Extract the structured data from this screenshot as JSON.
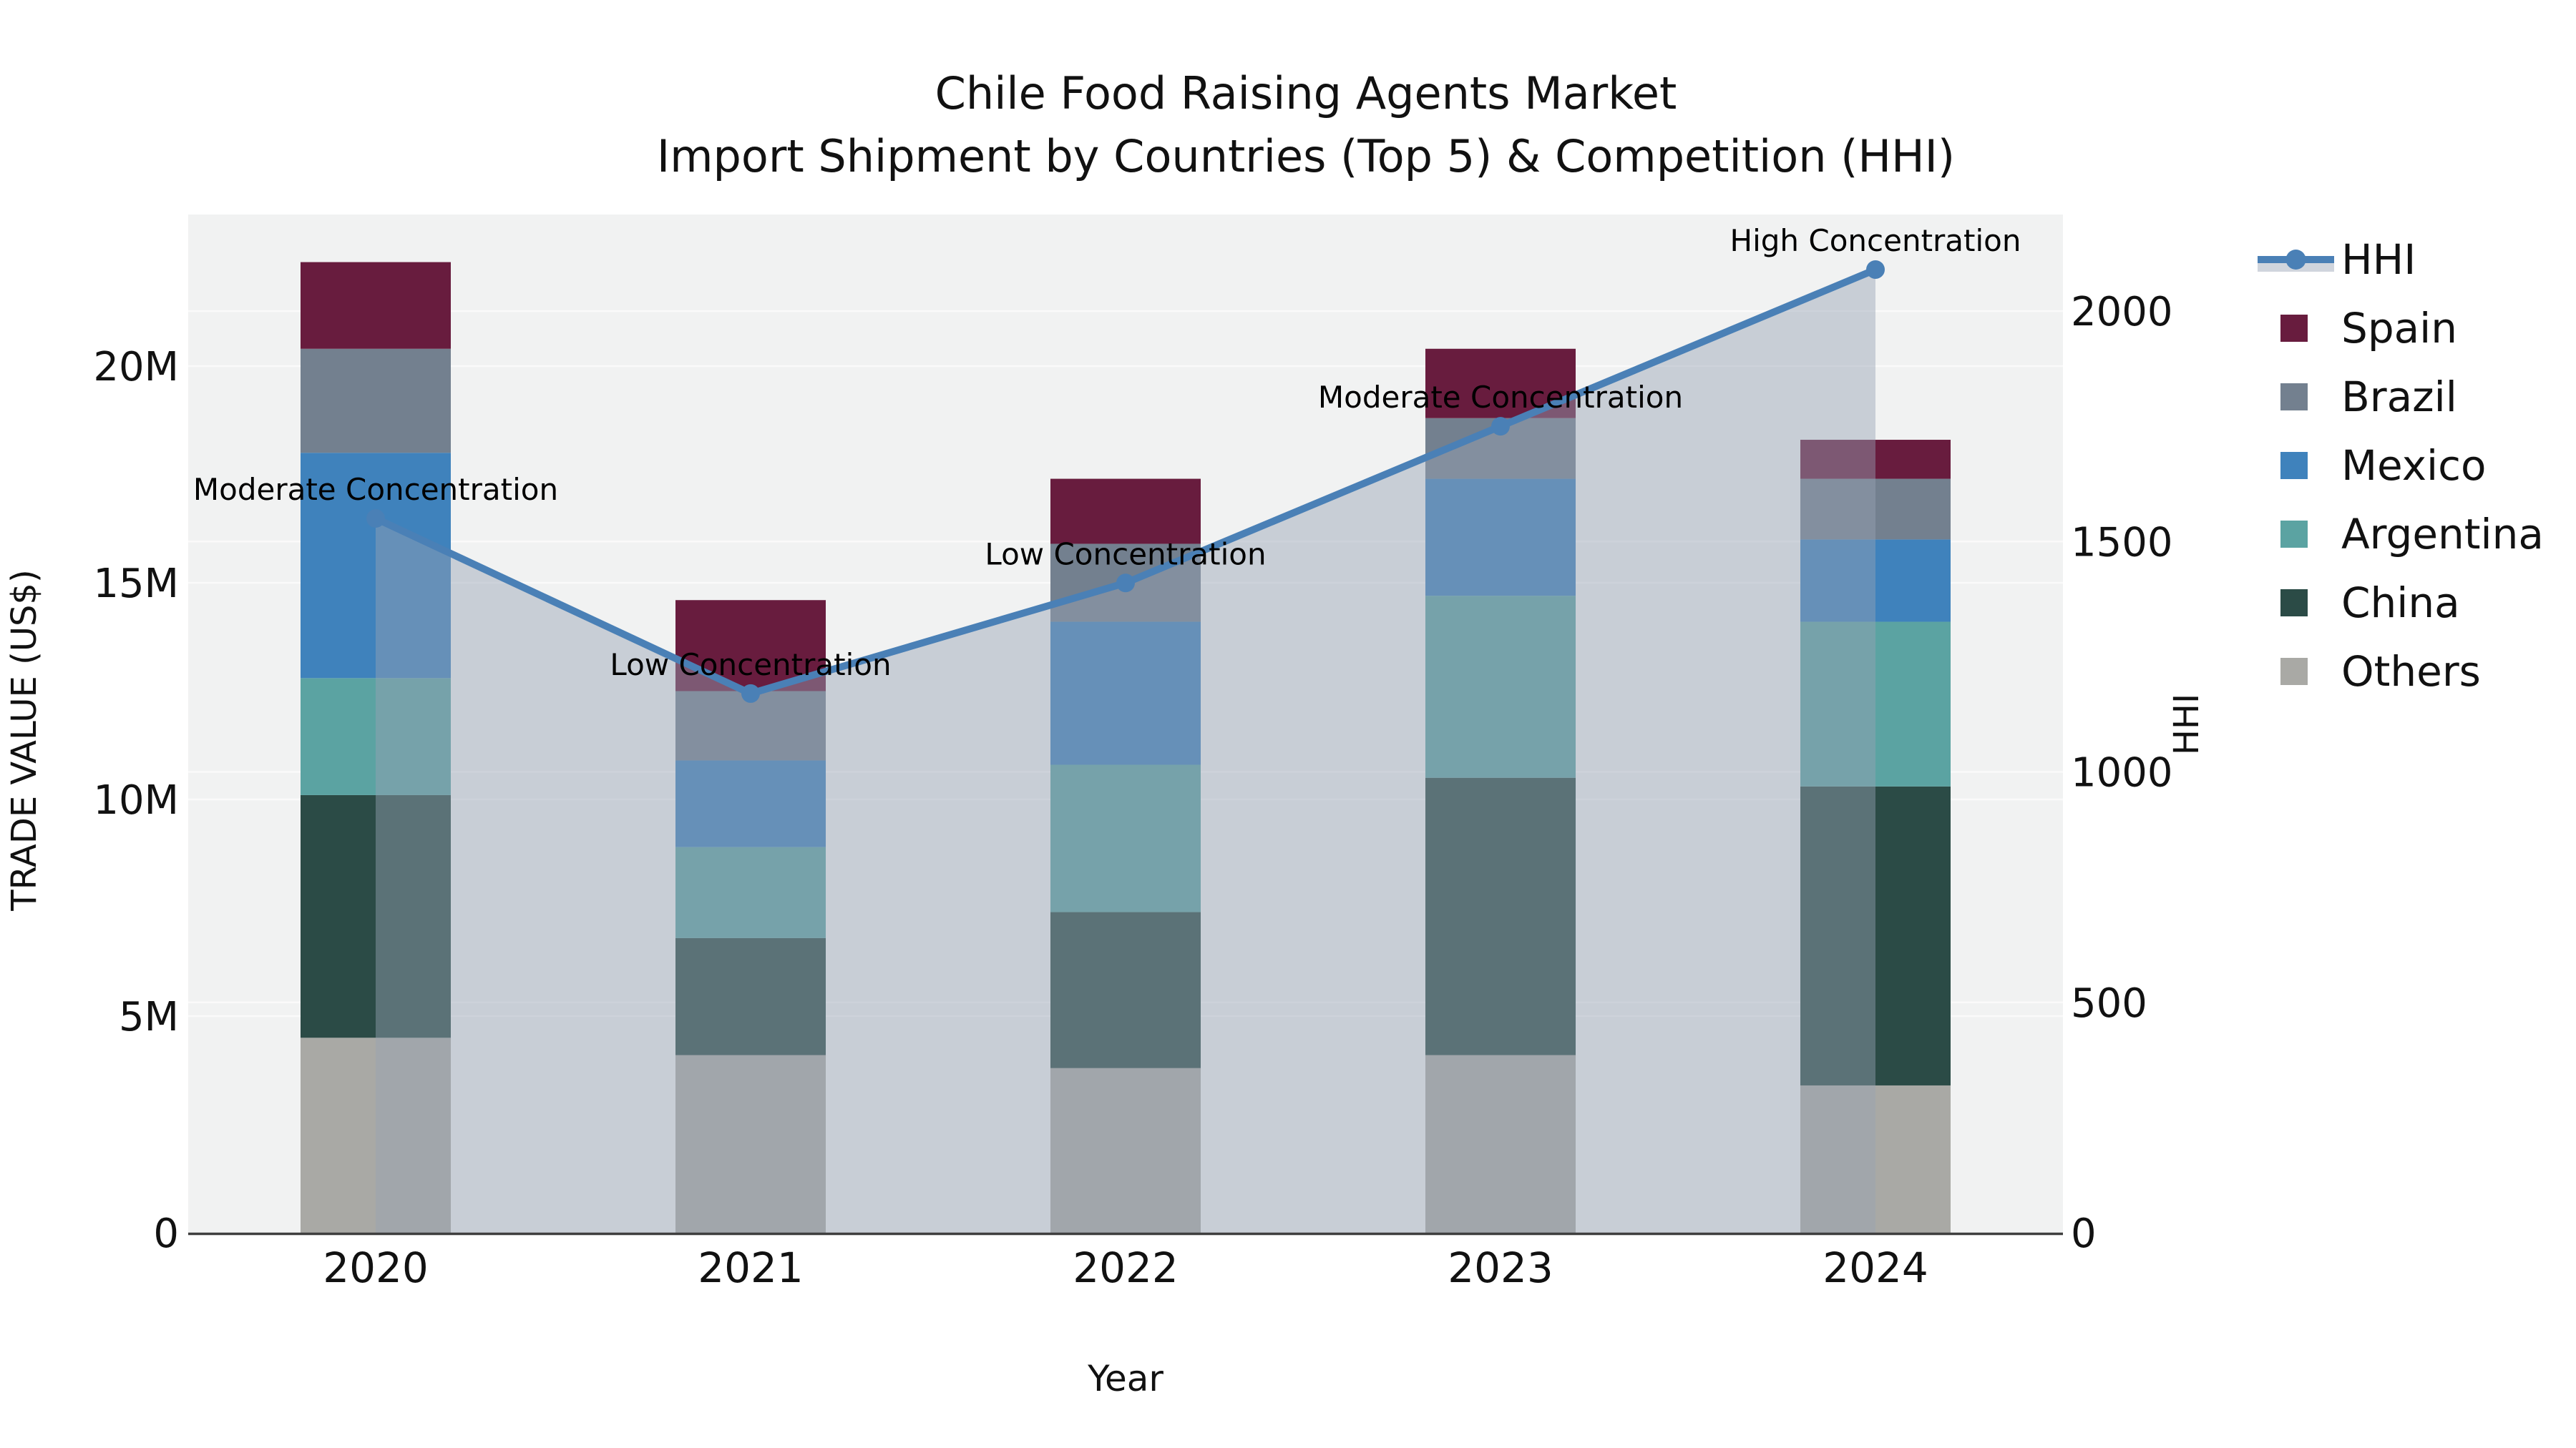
{
  "title": {
    "line1": "Chile Food Raising Agents Market",
    "line2": "Import Shipment by Countries (Top 5) & Competition (HHI)"
  },
  "chart_data": {
    "type": "combo-stacked-bar-line",
    "title": "Chile Food Raising Agents Market Import Shipment by Countries (Top 5) & Competition (HHI)",
    "categories": [
      "2020",
      "2021",
      "2022",
      "2023",
      "2024"
    ],
    "stack_series": [
      {
        "name": "Others",
        "color": "#a9a9a5",
        "values": [
          4.5,
          4.1,
          3.8,
          4.1,
          3.4
        ]
      },
      {
        "name": "China",
        "color": "#2b4b46",
        "values": [
          5.6,
          2.7,
          3.6,
          6.4,
          6.9
        ]
      },
      {
        "name": "Argentina",
        "color": "#5ba3a2",
        "values": [
          2.7,
          2.1,
          3.4,
          4.2,
          3.8
        ]
      },
      {
        "name": "Mexico",
        "color": "#3f82bc",
        "values": [
          5.2,
          2.0,
          3.3,
          2.7,
          1.9
        ]
      },
      {
        "name": "Brazil",
        "color": "#73808f",
        "values": [
          2.4,
          1.6,
          1.8,
          1.4,
          1.4
        ]
      },
      {
        "name": "Spain",
        "color": "#681c3e",
        "values": [
          2.0,
          2.1,
          1.5,
          1.6,
          0.9
        ]
      }
    ],
    "stack_totals": [
      22.4,
      14.6,
      17.4,
      20.4,
      18.3
    ],
    "line_series": {
      "name": "HHI",
      "color": "#4a80b6",
      "area_color": "rgba(150,161,180,0.45)",
      "values": [
        1550,
        1170,
        1410,
        1750,
        2090
      ],
      "annotations": [
        "Moderate Concentration",
        "Low Concentration",
        "Low Concentration",
        "Moderate Concentration",
        "High Concentration"
      ]
    },
    "left_axis": {
      "label": "TRADE VALUE (US$)",
      "ticks": [
        "0",
        "5M",
        "10M",
        "15M",
        "20M"
      ],
      "tick_values": [
        0,
        5,
        10,
        15,
        20
      ],
      "unit": "millions US$"
    },
    "right_axis": {
      "label": "HHI",
      "ticks": [
        "0",
        "500",
        "1000",
        "1500",
        "2000"
      ],
      "tick_values": [
        0,
        500,
        1000,
        1500,
        2000
      ]
    },
    "x_axis": {
      "label": "Year"
    },
    "legend": [
      "HHI",
      "Spain",
      "Brazil",
      "Mexico",
      "Argentina",
      "China",
      "Others"
    ],
    "layout_hints": {
      "plot_background": "#f1f2f2",
      "gridline_color": "#fafafa",
      "axis_line_color": "#3f3f3f",
      "grid": "both y-axes",
      "legend_position": "right"
    }
  }
}
